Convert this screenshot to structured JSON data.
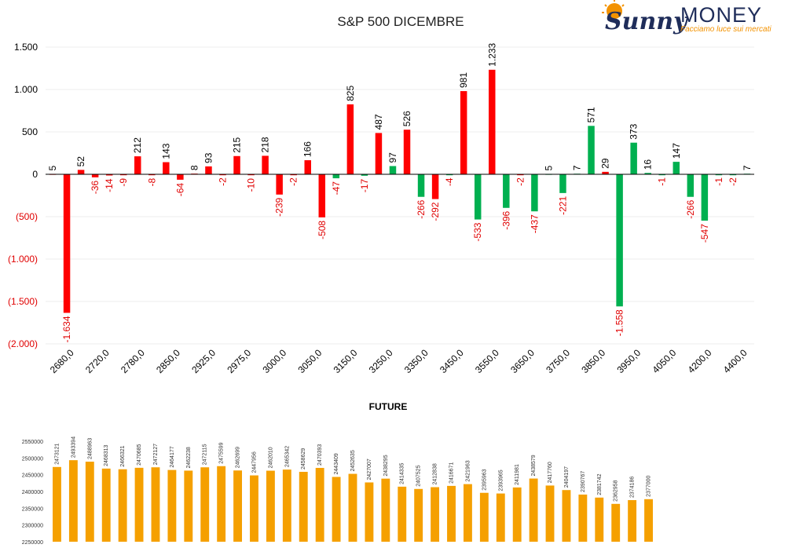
{
  "logo": {
    "brand_script": "Sunny",
    "brand_word": "MONEY",
    "tagline": "Facciamo luce sui mercati"
  },
  "colors": {
    "put": "#ff0000",
    "call": "#00b050",
    "negative_label": "#e00000",
    "future": "#f5a000",
    "logo_navy": "#1f2d5a",
    "logo_orange": "#f39200"
  },
  "chart_data": [
    {
      "type": "bar",
      "title": "S&P 500 DICEMBRE",
      "ylim": [
        -2000,
        1500
      ],
      "yticks": [
        {
          "value": 1500,
          "label": "1.500"
        },
        {
          "value": 1000,
          "label": "1.000"
        },
        {
          "value": 500,
          "label": "500"
        },
        {
          "value": 0,
          "label": "0"
        },
        {
          "value": -500,
          "label": "(500)"
        },
        {
          "value": -1000,
          "label": "(1.000)"
        },
        {
          "value": -1500,
          "label": "(1.500)"
        },
        {
          "value": -2000,
          "label": "(2.000)"
        }
      ],
      "xtick_labels": [
        "2680,0",
        "2720,0",
        "2780,0",
        "2850,0",
        "2925,0",
        "2975,0",
        "3000,0",
        "3050,0",
        "3150,0",
        "3250,0",
        "3350,0",
        "3450,0",
        "3550,0",
        "3650,0",
        "3750,0",
        "3850,0",
        "3950,0",
        "4050,0",
        "4200,0",
        "4400,0"
      ],
      "grid": true,
      "legend": "none",
      "bars": [
        {
          "value": 5,
          "label": "5",
          "color": "red"
        },
        {
          "value": -1634,
          "label": "-1.634",
          "color": "red"
        },
        {
          "value": 52,
          "label": "52",
          "color": "red"
        },
        {
          "value": -36,
          "label": "-36",
          "color": "red"
        },
        {
          "value": -14,
          "label": "-14",
          "color": "red"
        },
        {
          "value": -9,
          "label": "-9",
          "color": "red"
        },
        {
          "value": 212,
          "label": "212",
          "color": "red"
        },
        {
          "value": -8,
          "label": "-8",
          "color": "red"
        },
        {
          "value": 143,
          "label": "143",
          "color": "red"
        },
        {
          "value": -64,
          "label": "-64",
          "color": "red"
        },
        {
          "value": 8,
          "label": "8",
          "color": "red"
        },
        {
          "value": 93,
          "label": "93",
          "color": "red"
        },
        {
          "value": -2,
          "label": "-2",
          "color": "red"
        },
        {
          "value": 215,
          "label": "215",
          "color": "red"
        },
        {
          "value": -10,
          "label": "-10",
          "color": "red"
        },
        {
          "value": 218,
          "label": "218",
          "color": "red"
        },
        {
          "value": -239,
          "label": "-239",
          "color": "red"
        },
        {
          "value": -2,
          "label": "-2",
          "color": "red"
        },
        {
          "value": 166,
          "label": "166",
          "color": "red"
        },
        {
          "value": -508,
          "label": "-508",
          "color": "red"
        },
        {
          "value": -47,
          "label": "-47",
          "color": "green"
        },
        {
          "value": 825,
          "label": "825",
          "color": "red"
        },
        {
          "value": -17,
          "label": "-17",
          "color": "green"
        },
        {
          "value": 487,
          "label": "487",
          "color": "red"
        },
        {
          "value": 97,
          "label": "97",
          "color": "green"
        },
        {
          "value": 526,
          "label": "526",
          "color": "red"
        },
        {
          "value": -266,
          "label": "-266",
          "color": "green"
        },
        {
          "value": -292,
          "label": "-292",
          "color": "red"
        },
        {
          "value": -4,
          "label": "-4",
          "color": "green"
        },
        {
          "value": 981,
          "label": "981",
          "color": "red"
        },
        {
          "value": -533,
          "label": "-533",
          "color": "green"
        },
        {
          "value": 1233,
          "label": "1.233",
          "color": "red"
        },
        {
          "value": -396,
          "label": "-396",
          "color": "green"
        },
        {
          "value": -2,
          "label": "-2",
          "color": "red"
        },
        {
          "value": -437,
          "label": "-437",
          "color": "green"
        },
        {
          "value": 5,
          "label": "5",
          "color": "green"
        },
        {
          "value": -221,
          "label": "-221",
          "color": "green"
        },
        {
          "value": 7,
          "label": "7",
          "color": "green"
        },
        {
          "value": 571,
          "label": "571",
          "color": "green"
        },
        {
          "value": 29,
          "label": "29",
          "color": "red"
        },
        {
          "value": -1558,
          "label": "-1.558",
          "color": "green"
        },
        {
          "value": 373,
          "label": "373",
          "color": "green"
        },
        {
          "value": 16,
          "label": "16",
          "color": "green"
        },
        {
          "value": -1,
          "label": "-1",
          "color": "green"
        },
        {
          "value": 147,
          "label": "147",
          "color": "green"
        },
        {
          "value": -266,
          "label": "-266",
          "color": "green"
        },
        {
          "value": -547,
          "label": "-547",
          "color": "green"
        },
        {
          "value": -1,
          "label": "-1",
          "color": "green"
        },
        {
          "value": -2,
          "label": "-2",
          "color": "green"
        },
        {
          "value": 7,
          "label": "7",
          "color": "green"
        }
      ]
    },
    {
      "type": "bar",
      "title": "FUTURE",
      "ylim": [
        2250000,
        2550000
      ],
      "yticks": [
        2550000,
        2500000,
        2450000,
        2400000,
        2350000,
        2300000,
        2250000
      ],
      "grid": false,
      "legend": "none",
      "values": [
        2473121,
        2493394,
        2488963,
        2468313,
        2466321,
        2470685,
        2472127,
        2464177,
        2462238,
        2472115,
        2475599,
        2462699,
        2447956,
        2462010,
        2465342,
        2458629,
        2470393,
        2443409,
        2452635,
        2427007,
        2438295,
        2414335,
        2407525,
        2412838,
        2416671,
        2421963,
        2395963,
        2393965,
        2411981,
        2438579,
        2417760,
        2404197,
        2390767,
        2381742,
        2362958,
        2374186,
        2377000
      ]
    }
  ]
}
